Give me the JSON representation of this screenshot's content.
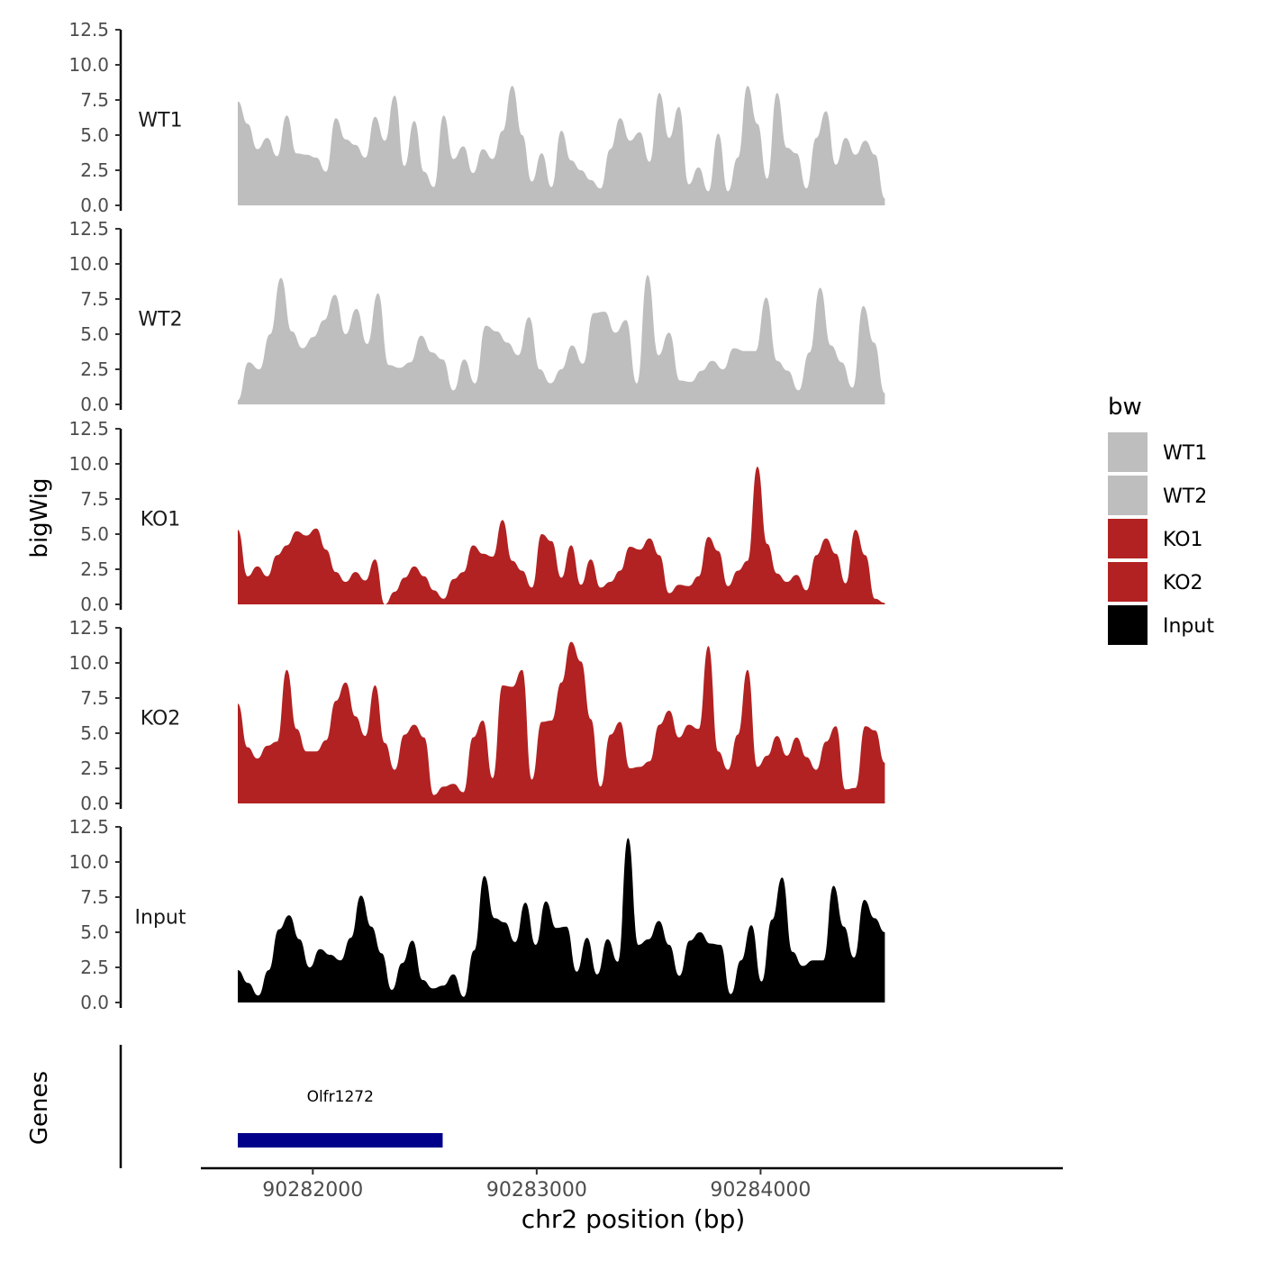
{
  "chart_data": {
    "type": "area",
    "ylabel": "bigWig",
    "genes_label": "Genes",
    "xlabel": "chr2 position (bp)",
    "xlim": [
      90281500,
      90285350
    ],
    "data_xrange": [
      90281665,
      90284555
    ],
    "ylim": [
      0,
      12.5
    ],
    "y_ticks": [
      "0.0",
      "2.5",
      "5.0",
      "7.5",
      "10.0",
      "12.5"
    ],
    "y_tick_values": [
      0,
      2.5,
      5,
      7.5,
      10,
      12.5
    ],
    "x_ticks": [
      "90282000",
      "90283000",
      "90284000"
    ],
    "x_tick_values": [
      90282000,
      90283000,
      90284000
    ],
    "legend": {
      "title": "bw",
      "position": "right",
      "entries": [
        "WT1",
        "WT2",
        "KO1",
        "KO2",
        "Input"
      ]
    },
    "colors": {
      "WT1": "#bebebe",
      "WT2": "#bebebe",
      "KO1": "#b22222",
      "KO2": "#b22222",
      "Input": "#000000",
      "gene": "#00008b"
    },
    "series": [
      {
        "name": "WT1",
        "values": [
          7.4,
          5.8,
          4.0,
          4.8,
          3.5,
          6.4,
          3.7,
          3.6,
          3.4,
          2.4,
          6.2,
          4.7,
          4.3,
          3.4,
          6.3,
          4.6,
          7.8,
          2.8,
          6.0,
          2.4,
          1.3,
          6.4,
          3.3,
          4.2,
          2.3,
          4.0,
          3.3,
          5.3,
          8.5,
          5.0,
          1.7,
          3.7,
          1.3,
          5.3,
          3.2,
          2.5,
          1.8,
          1.2,
          4.0,
          6.2,
          4.6,
          5.2,
          3.1,
          8.0,
          4.8,
          7.0,
          1.5,
          2.7,
          1.0,
          5.1,
          1.0,
          3.4,
          8.5,
          5.8,
          1.9,
          8.0,
          4.1,
          3.7,
          1.2,
          4.8,
          6.7,
          2.9,
          4.8,
          3.6,
          4.6,
          3.6,
          0.5
        ]
      },
      {
        "name": "WT2",
        "values": [
          0.3,
          3.0,
          2.5,
          5.0,
          9.0,
          5.2,
          4.0,
          4.8,
          6.0,
          7.8,
          5.0,
          6.8,
          4.3,
          7.9,
          2.8,
          2.6,
          3.0,
          4.9,
          3.7,
          3.2,
          1.0,
          3.2,
          1.5,
          5.6,
          5.2,
          4.4,
          3.5,
          6.2,
          2.5,
          1.5,
          2.5,
          4.2,
          2.9,
          6.5,
          6.6,
          5.1,
          6.0,
          1.5,
          9.2,
          3.5,
          5.1,
          1.7,
          1.6,
          2.4,
          3.1,
          2.5,
          4.0,
          3.8,
          3.8,
          7.6,
          3.1,
          2.4,
          1.0,
          3.7,
          8.3,
          4.2,
          3.0,
          1.2,
          7.0,
          4.4,
          0.8
        ]
      },
      {
        "name": "KO1",
        "values": [
          5.3,
          2.0,
          2.7,
          2.0,
          3.5,
          4.2,
          5.2,
          4.9,
          5.4,
          3.9,
          2.3,
          1.6,
          2.3,
          1.7,
          3.2,
          0.0,
          0.9,
          1.9,
          2.7,
          2.0,
          1.0,
          0.4,
          1.8,
          2.3,
          4.2,
          3.6,
          3.4,
          6.0,
          3.1,
          2.4,
          1.2,
          5.0,
          4.5,
          1.9,
          4.2,
          1.4,
          3.2,
          1.2,
          1.6,
          2.4,
          4.1,
          3.9,
          4.7,
          3.5,
          0.8,
          1.4,
          1.3,
          2.0,
          4.8,
          3.8,
          1.3,
          2.4,
          3.1,
          9.8,
          4.3,
          2.2,
          1.6,
          2.1,
          1.0,
          3.5,
          4.7,
          3.6,
          1.5,
          5.3,
          3.5,
          0.4,
          0.1
        ]
      },
      {
        "name": "KO2",
        "values": [
          7.1,
          4.0,
          3.2,
          4.1,
          4.4,
          9.5,
          5.3,
          3.7,
          3.7,
          4.5,
          7.3,
          8.6,
          6.2,
          4.8,
          8.4,
          4.3,
          2.4,
          4.9,
          5.6,
          4.7,
          0.6,
          1.2,
          1.4,
          0.8,
          4.7,
          5.9,
          1.8,
          8.4,
          8.3,
          9.5,
          1.7,
          5.8,
          5.9,
          8.6,
          11.5,
          10.1,
          6.0,
          1.2,
          4.9,
          5.8,
          2.5,
          2.6,
          3.0,
          5.6,
          6.6,
          4.7,
          5.6,
          5.3,
          11.2,
          3.7,
          2.4,
          4.9,
          9.5,
          2.6,
          3.4,
          4.8,
          3.4,
          4.7,
          3.3,
          2.4,
          4.4,
          5.5,
          1.0,
          1.1,
          5.5,
          5.2,
          2.9
        ]
      },
      {
        "name": "Input",
        "values": [
          2.3,
          1.4,
          0.5,
          2.3,
          5.2,
          6.2,
          4.5,
          2.5,
          3.8,
          3.4,
          3.0,
          4.6,
          7.6,
          5.4,
          3.5,
          0.9,
          2.8,
          4.4,
          1.6,
          1.0,
          1.2,
          2.0,
          0.4,
          3.7,
          9.0,
          6.0,
          5.7,
          4.3,
          7.1,
          4.1,
          7.2,
          5.3,
          5.4,
          2.2,
          4.6,
          2.0,
          4.5,
          2.9,
          11.7,
          4.1,
          4.5,
          5.8,
          4.1,
          1.9,
          4.4,
          5.0,
          4.2,
          4.1,
          0.6,
          3.0,
          5.5,
          1.5,
          5.9,
          8.9,
          3.6,
          2.6,
          3.0,
          3.0,
          8.3,
          5.4,
          3.2,
          7.3,
          6.0,
          5.0
        ]
      }
    ],
    "genes": [
      {
        "name": "Olfr1272",
        "start": 90281665,
        "end": 90282580
      }
    ]
  }
}
